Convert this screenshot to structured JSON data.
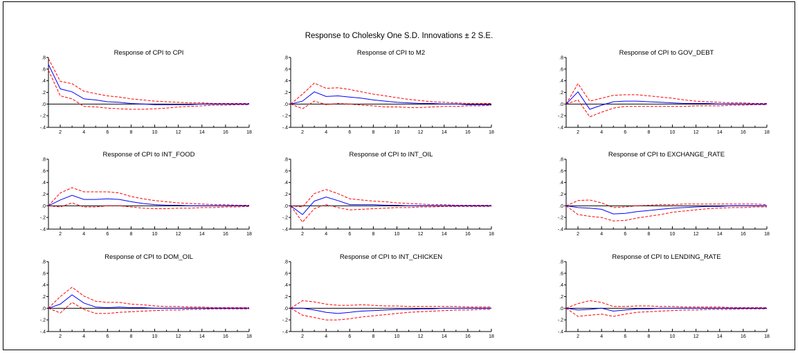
{
  "chart_data": {
    "title": "Response to Cholesky One S.D. Innovations ± 2 S.E.",
    "type": "line",
    "colors": {
      "response": "#0000ff",
      "bands": "#ff0000",
      "axes": "#000000"
    },
    "x": [
      1,
      2,
      3,
      4,
      5,
      6,
      7,
      8,
      9,
      10,
      11,
      12,
      13,
      14,
      15,
      16,
      17,
      18
    ],
    "xticks": [
      2,
      4,
      6,
      8,
      10,
      12,
      14,
      16,
      18
    ],
    "yticks": [
      ".8",
      ".6",
      ".4",
      ".2",
      ".0",
      "-.2",
      "-.4"
    ],
    "ylim": [
      -0.4,
      0.8
    ],
    "panels": [
      {
        "title": "Response of CPI to CPI",
        "response": [
          0.68,
          0.26,
          0.21,
          0.09,
          0.07,
          0.04,
          0.03,
          0.01,
          0.0,
          -0.01,
          -0.01,
          -0.01,
          -0.01,
          0.0,
          0.0,
          0.0,
          0.0,
          0.0
        ],
        "upper": [
          0.78,
          0.39,
          0.35,
          0.22,
          0.18,
          0.14,
          0.12,
          0.09,
          0.07,
          0.05,
          0.04,
          0.03,
          0.02,
          0.02,
          0.01,
          0.01,
          0.01,
          0.01
        ],
        "lower": [
          0.58,
          0.14,
          0.09,
          -0.04,
          -0.05,
          -0.07,
          -0.08,
          -0.09,
          -0.09,
          -0.08,
          -0.07,
          -0.05,
          -0.04,
          -0.03,
          -0.02,
          -0.02,
          -0.01,
          -0.01
        ]
      },
      {
        "title": "Response of CPI to M2",
        "response": [
          0.0,
          0.05,
          0.21,
          0.13,
          0.14,
          0.12,
          0.1,
          0.07,
          0.05,
          0.03,
          0.02,
          0.01,
          0.01,
          0.0,
          0.0,
          -0.01,
          -0.01,
          -0.01
        ],
        "upper": [
          0.0,
          0.17,
          0.36,
          0.27,
          0.28,
          0.25,
          0.21,
          0.17,
          0.14,
          0.11,
          0.08,
          0.06,
          0.04,
          0.03,
          0.02,
          0.01,
          0.01,
          0.01
        ],
        "lower": [
          0.0,
          -0.08,
          0.05,
          -0.01,
          0.01,
          0.0,
          -0.02,
          -0.03,
          -0.05,
          -0.05,
          -0.06,
          -0.06,
          -0.05,
          -0.04,
          -0.04,
          -0.03,
          -0.03,
          -0.02
        ]
      },
      {
        "title": "Response of CPI to GOV_DEBT",
        "response": [
          0.0,
          0.21,
          -0.09,
          -0.02,
          0.04,
          0.05,
          0.05,
          0.04,
          0.03,
          0.02,
          0.01,
          0.01,
          0.01,
          0.0,
          0.0,
          0.0,
          0.0,
          0.0
        ],
        "upper": [
          0.0,
          0.35,
          0.05,
          0.1,
          0.15,
          0.16,
          0.16,
          0.14,
          0.12,
          0.1,
          0.07,
          0.05,
          0.04,
          0.03,
          0.02,
          0.02,
          0.01,
          0.01
        ],
        "lower": [
          0.0,
          0.07,
          -0.22,
          -0.14,
          -0.07,
          -0.04,
          -0.04,
          -0.04,
          -0.04,
          -0.04,
          -0.04,
          -0.03,
          -0.03,
          -0.03,
          -0.02,
          -0.02,
          -0.01,
          -0.01
        ]
      },
      {
        "title": "Response of CPI to INT_FOOD",
        "response": [
          0.0,
          0.1,
          0.18,
          0.11,
          0.11,
          0.12,
          0.11,
          0.07,
          0.04,
          0.02,
          0.01,
          0.01,
          0.0,
          0.0,
          0.0,
          0.0,
          0.0,
          0.0
        ],
        "upper": [
          0.0,
          0.22,
          0.31,
          0.24,
          0.24,
          0.24,
          0.22,
          0.16,
          0.12,
          0.09,
          0.07,
          0.05,
          0.04,
          0.03,
          0.02,
          0.02,
          0.01,
          0.01
        ],
        "lower": [
          0.0,
          -0.02,
          0.05,
          -0.02,
          -0.02,
          0.0,
          0.0,
          -0.02,
          -0.04,
          -0.05,
          -0.05,
          -0.04,
          -0.04,
          -0.03,
          -0.03,
          -0.02,
          -0.02,
          -0.01
        ]
      },
      {
        "title": "Response of CPI to INT_OIL",
        "response": [
          0.0,
          -0.15,
          0.08,
          0.15,
          0.09,
          0.02,
          0.02,
          0.02,
          0.01,
          0.01,
          0.0,
          0.0,
          0.0,
          0.0,
          0.0,
          0.0,
          0.0,
          0.0
        ],
        "upper": [
          0.0,
          -0.02,
          0.21,
          0.28,
          0.21,
          0.12,
          0.1,
          0.08,
          0.07,
          0.05,
          0.04,
          0.03,
          0.02,
          0.02,
          0.01,
          0.01,
          0.01,
          0.01
        ],
        "lower": [
          0.0,
          -0.28,
          -0.05,
          0.02,
          -0.03,
          -0.07,
          -0.06,
          -0.05,
          -0.04,
          -0.03,
          -0.03,
          -0.02,
          -0.02,
          -0.01,
          -0.01,
          -0.01,
          -0.01,
          -0.01
        ]
      },
      {
        "title": "Response of CPI to EXCHANGE_RATE",
        "response": [
          0.0,
          -0.03,
          -0.04,
          -0.06,
          -0.14,
          -0.13,
          -0.1,
          -0.08,
          -0.06,
          -0.04,
          -0.03,
          -0.02,
          -0.01,
          -0.01,
          0.0,
          0.0,
          0.0,
          0.0
        ],
        "upper": [
          0.0,
          0.09,
          0.1,
          0.05,
          -0.03,
          -0.02,
          0.0,
          0.01,
          0.02,
          0.02,
          0.03,
          0.03,
          0.03,
          0.03,
          0.03,
          0.03,
          0.03,
          0.02
        ],
        "lower": [
          0.0,
          -0.15,
          -0.18,
          -0.2,
          -0.26,
          -0.25,
          -0.21,
          -0.18,
          -0.15,
          -0.11,
          -0.09,
          -0.07,
          -0.05,
          -0.04,
          -0.03,
          -0.03,
          -0.02,
          -0.02
        ]
      },
      {
        "title": "Response of CPI to DOM_OIL",
        "response": [
          0.0,
          0.07,
          0.23,
          0.09,
          0.02,
          0.01,
          0.02,
          0.01,
          0.01,
          0.0,
          0.0,
          0.0,
          0.0,
          0.0,
          0.0,
          0.0,
          0.0,
          0.0
        ],
        "upper": [
          0.0,
          0.2,
          0.36,
          0.21,
          0.12,
          0.1,
          0.1,
          0.07,
          0.06,
          0.04,
          0.03,
          0.03,
          0.02,
          0.02,
          0.01,
          0.01,
          0.01,
          0.01
        ],
        "lower": [
          0.0,
          -0.08,
          0.1,
          -0.02,
          -0.09,
          -0.09,
          -0.07,
          -0.06,
          -0.05,
          -0.04,
          -0.03,
          -0.03,
          -0.02,
          -0.02,
          -0.01,
          -0.01,
          -0.01,
          -0.01
        ]
      },
      {
        "title": "Response of CPI to INT_CHICKEN",
        "response": [
          0.0,
          0.0,
          -0.03,
          -0.07,
          -0.09,
          -0.07,
          -0.05,
          -0.04,
          -0.03,
          -0.02,
          -0.02,
          -0.01,
          -0.01,
          0.0,
          0.0,
          0.0,
          0.0,
          0.0
        ],
        "upper": [
          0.0,
          0.13,
          0.11,
          0.07,
          0.05,
          0.05,
          0.06,
          0.05,
          0.04,
          0.04,
          0.03,
          0.03,
          0.03,
          0.03,
          0.03,
          0.02,
          0.02,
          0.02
        ],
        "lower": [
          0.0,
          -0.12,
          -0.16,
          -0.2,
          -0.2,
          -0.18,
          -0.15,
          -0.13,
          -0.11,
          -0.09,
          -0.07,
          -0.06,
          -0.05,
          -0.04,
          -0.03,
          -0.03,
          -0.02,
          -0.02
        ]
      },
      {
        "title": "Response of CPI to LENDING_RATE",
        "response": [
          0.0,
          -0.03,
          -0.02,
          0.0,
          -0.05,
          -0.03,
          -0.01,
          -0.01,
          0.0,
          0.0,
          0.0,
          0.0,
          0.0,
          0.0,
          0.0,
          0.0,
          0.0,
          0.0
        ],
        "upper": [
          0.0,
          0.08,
          0.13,
          0.1,
          0.03,
          0.03,
          0.04,
          0.04,
          0.03,
          0.03,
          0.02,
          0.02,
          0.02,
          0.02,
          0.01,
          0.01,
          0.01,
          0.01
        ],
        "lower": [
          0.0,
          -0.14,
          -0.12,
          -0.1,
          -0.14,
          -0.1,
          -0.07,
          -0.06,
          -0.05,
          -0.04,
          -0.03,
          -0.03,
          -0.02,
          -0.02,
          -0.02,
          -0.01,
          -0.01,
          -0.01
        ]
      }
    ]
  }
}
